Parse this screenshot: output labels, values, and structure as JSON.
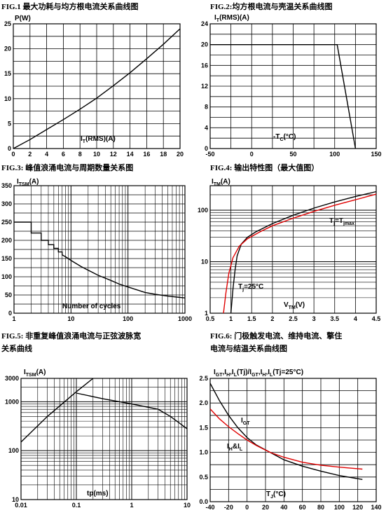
{
  "captions": {
    "fig1": "FIG.1  最大功耗与均方根电流关系曲线图",
    "fig2": "FIG.2:均方根电流与壳温关系曲线图",
    "fig3": "FIG.3:  峰值浪涌电流与周期数量关系图",
    "fig4": "FIG.4:  输出特性图（最大值图）",
    "fig5a": "FIG.5:  非重复峰值浪涌电流与正弦波脉宽",
    "fig5b": "关系曲线",
    "fig6a": "FIG.6:  门极触发电流、维持电流、擎住",
    "fig6b": "电流与结温关系曲线图"
  },
  "chart_data": [
    {
      "id": "fig1",
      "type": "line",
      "ylabel": "P(W)",
      "xlabel": "I_T(RMS)(A)",
      "xlim": [
        0,
        20
      ],
      "ylim": [
        0,
        25
      ],
      "xticks": [
        0,
        2,
        4,
        6,
        8,
        10,
        12,
        14,
        16,
        18,
        20
      ],
      "yticks": [
        0,
        5,
        10,
        15,
        20,
        25
      ],
      "grid": true,
      "series": [
        {
          "color": "#000000",
          "x": [
            0,
            2,
            4,
            6,
            8,
            10,
            12,
            14,
            16,
            18,
            20
          ],
          "y": [
            0,
            1.8,
            3.8,
            5.8,
            7.9,
            10.1,
            12.6,
            15.2,
            18.0,
            20.9,
            24.0
          ]
        }
      ]
    },
    {
      "id": "fig2",
      "type": "line",
      "ylabel": "I_T(RMS)(A)",
      "xlabel": "-T_C(°C)",
      "xlim": [
        -50,
        150
      ],
      "ylim": [
        0,
        24
      ],
      "xticks": [
        -50,
        0,
        50,
        100,
        150
      ],
      "yticks": [
        0,
        4,
        8,
        12,
        16,
        20,
        24
      ],
      "grid": true,
      "series": [
        {
          "color": "#000000",
          "x": [
            -50,
            103,
            125
          ],
          "y": [
            20,
            20,
            0
          ]
        }
      ]
    },
    {
      "id": "fig3",
      "type": "line",
      "ylabel": "I_TSM(A)",
      "xlabel": "Number of cycles",
      "xscale": "log",
      "xlim": [
        1,
        1000
      ],
      "ylim": [
        0,
        350
      ],
      "xticks": [
        1,
        10,
        100,
        1000
      ],
      "yticks": [
        0,
        50,
        100,
        150,
        200,
        250,
        300,
        350
      ],
      "grid": true,
      "series": [
        {
          "color": "#000000",
          "x": [
            1,
            2,
            2,
            3,
            3,
            4,
            4,
            5,
            5,
            6,
            6,
            7,
            7,
            8,
            10,
            15,
            20,
            30,
            50,
            70,
            100,
            200,
            300,
            500,
            1000
          ],
          "y": [
            250,
            250,
            220,
            220,
            200,
            200,
            188,
            188,
            178,
            178,
            168,
            168,
            160,
            155,
            145,
            128,
            118,
            104,
            90,
            80,
            72,
            57,
            52,
            47,
            42
          ]
        }
      ]
    },
    {
      "id": "fig4",
      "type": "line",
      "ylabel": "I_TM(A)",
      "xlabel": "V_TM(V)",
      "yscale": "log",
      "xlim": [
        0.5,
        4.5
      ],
      "ylim": [
        1,
        300
      ],
      "xticks": [
        0.5,
        1.0,
        1.5,
        2.0,
        2.5,
        3.0,
        3.5,
        4.0,
        4.5
      ],
      "yticks": [
        1,
        10,
        100
      ],
      "grid": true,
      "annotations": [
        "Tj=Tjmax",
        "Tj=25°C"
      ],
      "series": [
        {
          "name": "Tj=25°C",
          "color": "#000000",
          "x": [
            1.0,
            1.05,
            1.1,
            1.15,
            1.25,
            1.4,
            1.6,
            2.0,
            2.5,
            3.0,
            3.5,
            4.0,
            4.5
          ],
          "y": [
            1,
            3,
            7,
            13,
            22,
            30,
            38,
            55,
            80,
            110,
            145,
            185,
            230
          ]
        },
        {
          "name": "Tj=Tjmax",
          "color": "#e00000",
          "x": [
            0.82,
            0.88,
            0.95,
            1.05,
            1.2,
            1.4,
            1.7,
            2.0,
            2.5,
            3.0,
            3.5,
            4.0,
            4.5
          ],
          "y": [
            1,
            2.5,
            6,
            12,
            20,
            28,
            38,
            50,
            70,
            95,
            125,
            160,
            205
          ]
        }
      ]
    },
    {
      "id": "fig5",
      "type": "line",
      "ylabel": "I_TSM(A)",
      "xlabel": "tp(ms)",
      "xscale": "log",
      "yscale": "log",
      "xlim": [
        0.01,
        10
      ],
      "ylim": [
        10,
        3000
      ],
      "xticks": [
        0.01,
        0.1,
        1,
        10
      ],
      "yticks": [
        10,
        100,
        1000,
        3000
      ],
      "grid": true,
      "series": [
        {
          "color": "#000000",
          "x": [
            0.01,
            0.03,
            0.1,
            0.2
          ],
          "y": [
            150,
            500,
            1600,
            3000
          ]
        },
        {
          "color": "#000000",
          "x": [
            0.1,
            0.3,
            1,
            3,
            5,
            10
          ],
          "y": [
            1500,
            1150,
            900,
            700,
            500,
            280
          ]
        }
      ]
    },
    {
      "id": "fig6",
      "type": "line",
      "ylabel": "I_GT,I_H,I_L(Tj)/I_GT,I_H,I_L(Tj=25°C)",
      "xlabel": "T_J(°C)",
      "xlim": [
        -40,
        140
      ],
      "ylim": [
        0,
        2.5
      ],
      "xticks": [
        -40,
        -20,
        0,
        20,
        40,
        60,
        80,
        100,
        120,
        140
      ],
      "yticks": [
        0,
        0.5,
        1.0,
        1.5,
        2.0,
        2.5
      ],
      "grid": true,
      "annotations": [
        "I_GT",
        "I_H&I_L"
      ],
      "series": [
        {
          "name": "I_GT",
          "color": "#000000",
          "x": [
            -40,
            -30,
            -20,
            -10,
            0,
            10,
            25,
            40,
            60,
            80,
            100,
            125
          ],
          "y": [
            2.4,
            2.05,
            1.75,
            1.5,
            1.3,
            1.15,
            1.0,
            0.85,
            0.72,
            0.62,
            0.53,
            0.45
          ]
        },
        {
          "name": "I_H&I_L",
          "color": "#e00000",
          "x": [
            -40,
            -30,
            -20,
            -10,
            0,
            10,
            25,
            40,
            60,
            80,
            100,
            125
          ],
          "y": [
            1.88,
            1.68,
            1.52,
            1.38,
            1.25,
            1.14,
            1.0,
            0.9,
            0.8,
            0.74,
            0.7,
            0.66
          ]
        }
      ]
    }
  ]
}
